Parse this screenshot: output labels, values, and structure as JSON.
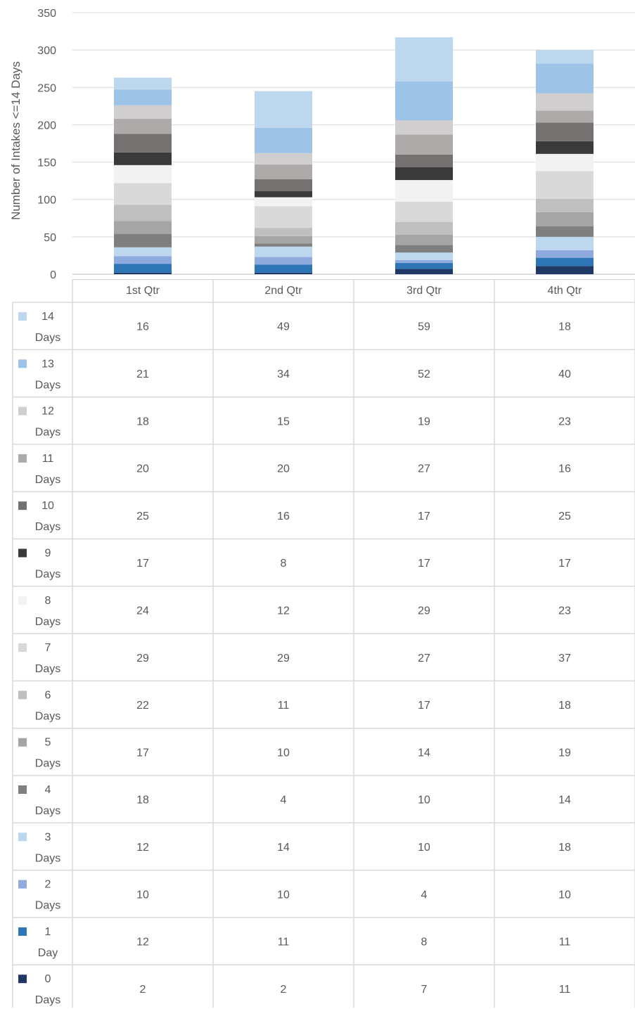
{
  "chart_data": {
    "type": "bar",
    "stacked": true,
    "ylabel": "Number of Intakes <=14 Days",
    "ylim": [
      0,
      350
    ],
    "yticks": [
      0,
      50,
      100,
      150,
      200,
      250,
      300,
      350
    ],
    "grid": true,
    "legend": "data-table",
    "categories": [
      "1st Qtr",
      "2nd Qtr",
      "3rd Qtr",
      "4th Qtr"
    ],
    "series": [
      {
        "num": "0",
        "unit": "Days",
        "color": "#203864",
        "values": [
          2,
          2,
          7,
          11
        ]
      },
      {
        "num": "1",
        "unit": "Day",
        "color": "#2E75B6",
        "values": [
          12,
          11,
          8,
          11
        ]
      },
      {
        "num": "2",
        "unit": "Days",
        "color": "#8FAADC",
        "values": [
          10,
          10,
          4,
          10
        ]
      },
      {
        "num": "3",
        "unit": "Days",
        "color": "#BDD7EE",
        "values": [
          12,
          14,
          10,
          18
        ]
      },
      {
        "num": "4",
        "unit": "Days",
        "color": "#7F7F7F",
        "values": [
          18,
          4,
          10,
          14
        ]
      },
      {
        "num": "5",
        "unit": "Days",
        "color": "#A5A5A5",
        "values": [
          17,
          10,
          14,
          19
        ]
      },
      {
        "num": "6",
        "unit": "Days",
        "color": "#BFBFBF",
        "values": [
          22,
          11,
          17,
          18
        ]
      },
      {
        "num": "7",
        "unit": "Days",
        "color": "#D9D9D9",
        "values": [
          29,
          29,
          27,
          37
        ]
      },
      {
        "num": "8",
        "unit": "Days",
        "color": "#F2F2F2",
        "values": [
          24,
          12,
          29,
          23
        ]
      },
      {
        "num": "9",
        "unit": "Days",
        "color": "#3A3A3A",
        "values": [
          17,
          8,
          17,
          17
        ]
      },
      {
        "num": "10",
        "unit": "Days",
        "color": "#767171",
        "values": [
          25,
          16,
          17,
          25
        ]
      },
      {
        "num": "11",
        "unit": "Days",
        "color": "#AEAAAA",
        "values": [
          20,
          20,
          27,
          16
        ]
      },
      {
        "num": "12",
        "unit": "Days",
        "color": "#D0CECE",
        "values": [
          18,
          15,
          19,
          23
        ]
      },
      {
        "num": "13",
        "unit": "Days",
        "color": "#9DC3E6",
        "values": [
          21,
          34,
          52,
          40
        ]
      },
      {
        "num": "14",
        "unit": "Days",
        "color": "#BDD7EE",
        "values": [
          16,
          49,
          59,
          18
        ]
      }
    ]
  }
}
